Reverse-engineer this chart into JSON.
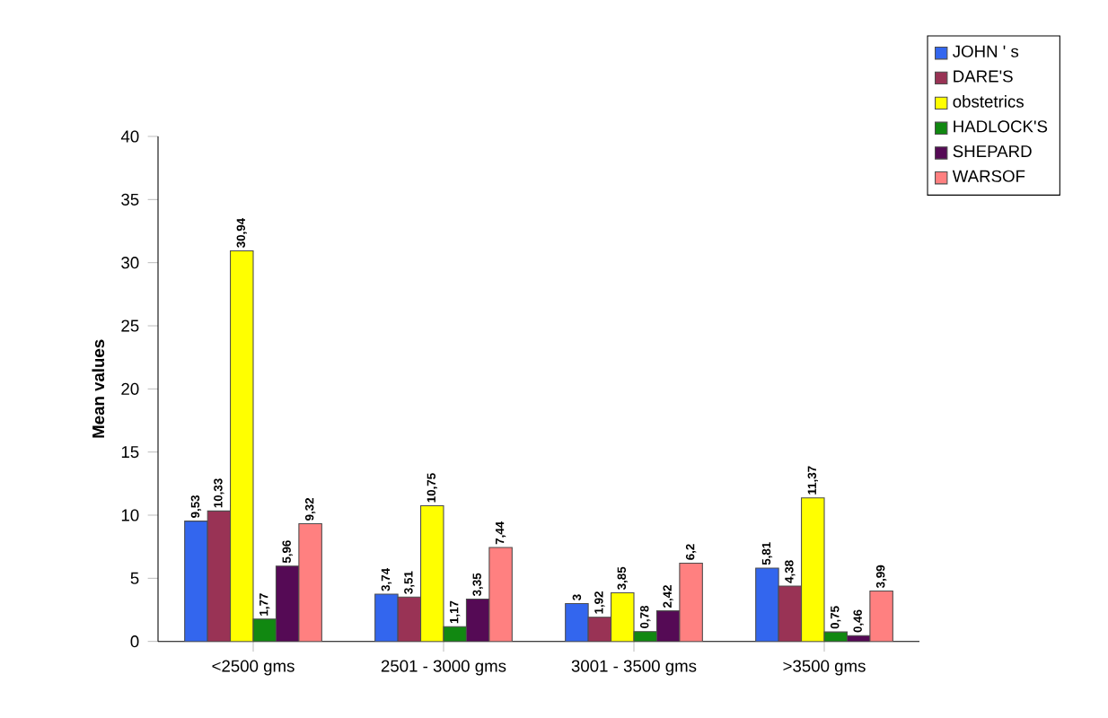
{
  "chart_data": {
    "type": "bar",
    "ylabel": "Mean values",
    "categories": [
      "<2500 gms",
      "2501 - 3000 gms",
      "3001 - 3500 gms",
      ">3500 gms"
    ],
    "series": [
      {
        "name": "JOHN ' s",
        "color": "#3366ee",
        "values": [
          9.53,
          3.74,
          3,
          5.81
        ],
        "value_labels": [
          "9,53",
          "3,74",
          "3",
          "5,81"
        ]
      },
      {
        "name": "DARE'S",
        "color": "#993355",
        "values": [
          10.33,
          3.51,
          1.92,
          4.38
        ],
        "value_labels": [
          "10,33",
          "3,51",
          "1,92",
          "4,38"
        ]
      },
      {
        "name": "obstetrics",
        "color": "#ffff00",
        "values": [
          30.94,
          10.75,
          3.85,
          11.37
        ],
        "value_labels": [
          "30,94",
          "10,75",
          "3,85",
          "11,37"
        ]
      },
      {
        "name": "HADLOCK'S",
        "color": "#118811",
        "values": [
          1.77,
          1.17,
          0.78,
          0.75
        ],
        "value_labels": [
          "1,77",
          "1,17",
          "0,78",
          "0,75"
        ]
      },
      {
        "name": "SHEPARD",
        "color": "#550a55",
        "values": [
          5.96,
          3.35,
          2.42,
          0.46
        ],
        "value_labels": [
          "5,96",
          "3,35",
          "2,42",
          "0,46"
        ]
      },
      {
        "name": "WARSOF",
        "color": "#ff8080",
        "values": [
          9.32,
          7.44,
          6.2,
          3.99
        ],
        "value_labels": [
          "9,32",
          "7,44",
          "6,2",
          "3,99"
        ]
      }
    ],
    "ylim": [
      0,
      40
    ],
    "yticks": [
      0,
      5,
      10,
      15,
      20,
      25,
      30,
      35,
      40
    ],
    "grid": false,
    "legend": "top right"
  }
}
